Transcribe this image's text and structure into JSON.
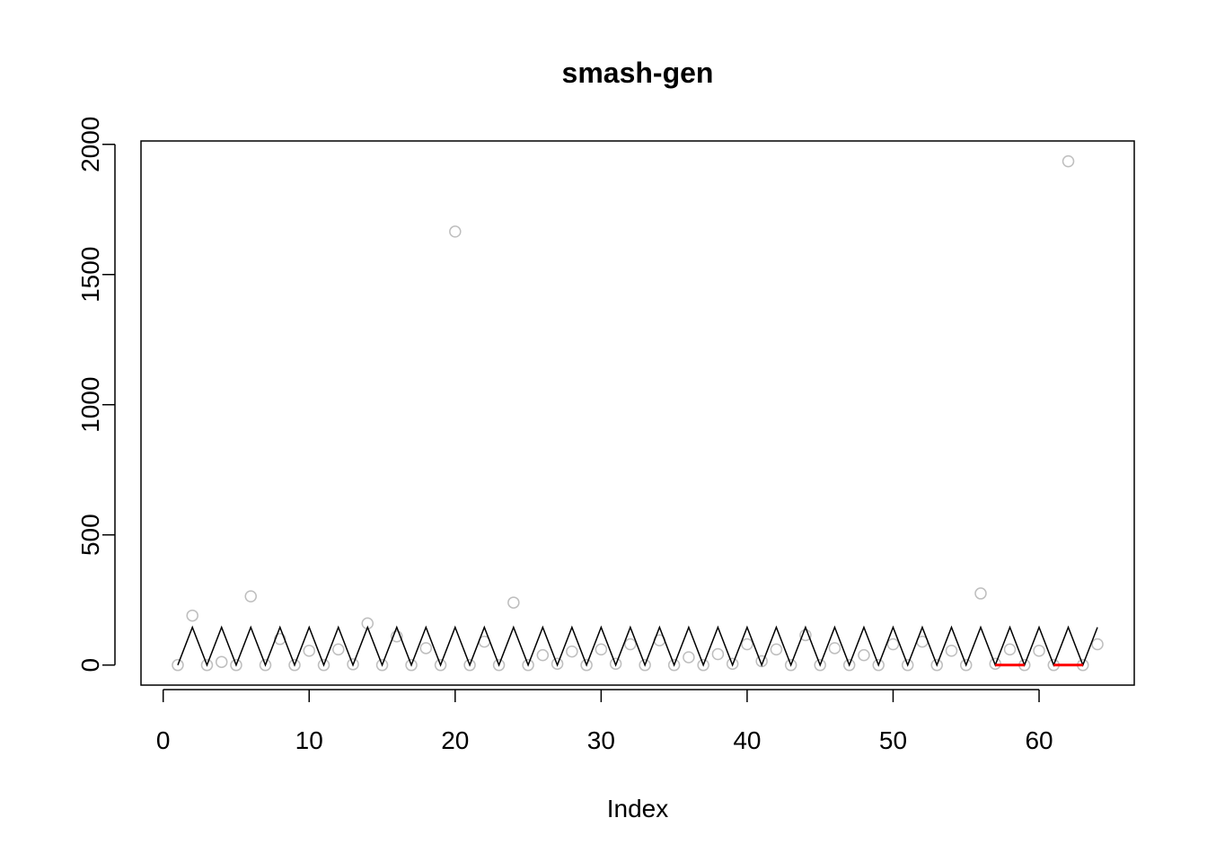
{
  "chart_data": {
    "type": "line",
    "title": "smash-gen",
    "xlabel": "Index",
    "x": [
      1,
      2,
      3,
      4,
      5,
      6,
      7,
      8,
      9,
      10,
      11,
      12,
      13,
      14,
      15,
      16,
      17,
      18,
      19,
      20,
      21,
      22,
      23,
      24,
      25,
      26,
      27,
      28,
      29,
      30,
      31,
      32,
      33,
      34,
      35,
      36,
      37,
      38,
      39,
      40,
      41,
      42,
      43,
      44,
      45,
      46,
      47,
      48,
      49,
      50,
      51,
      52,
      53,
      54,
      55,
      56,
      57,
      58,
      59,
      60,
      61,
      62,
      63,
      64
    ],
    "series": [
      {
        "style": "points",
        "color": "#bebebe",
        "values": [
          0,
          190,
          0,
          12,
          0,
          264,
          0,
          100,
          0,
          55,
          0,
          60,
          3,
          160,
          0,
          110,
          0,
          65,
          0,
          1665,
          0,
          90,
          0,
          240,
          0,
          38,
          5,
          52,
          0,
          60,
          5,
          80,
          0,
          95,
          0,
          30,
          0,
          42,
          5,
          80,
          15,
          60,
          0,
          115,
          0,
          65,
          0,
          38,
          0,
          80,
          0,
          90,
          0,
          55,
          0,
          275,
          5,
          60,
          0,
          55,
          0,
          1935,
          0,
          80
        ]
      },
      {
        "style": "line",
        "color": "#000000",
        "values": [
          0,
          145,
          0,
          145,
          0,
          145,
          0,
          145,
          0,
          145,
          0,
          145,
          0,
          145,
          0,
          145,
          0,
          145,
          0,
          145,
          0,
          145,
          0,
          145,
          0,
          145,
          0,
          145,
          0,
          145,
          0,
          145,
          0,
          145,
          0,
          145,
          0,
          145,
          0,
          145,
          0,
          145,
          0,
          145,
          0,
          145,
          0,
          145,
          0,
          145,
          0,
          145,
          0,
          145,
          0,
          145,
          0,
          145,
          0,
          145,
          0,
          145,
          0,
          145
        ]
      },
      {
        "style": "line",
        "color": "#ff0000",
        "width": 3,
        "values": [
          null,
          null,
          null,
          null,
          null,
          null,
          null,
          null,
          null,
          null,
          null,
          null,
          null,
          null,
          null,
          null,
          null,
          null,
          null,
          null,
          null,
          null,
          null,
          null,
          null,
          null,
          null,
          null,
          null,
          null,
          null,
          null,
          null,
          null,
          null,
          null,
          null,
          null,
          null,
          null,
          null,
          null,
          null,
          null,
          null,
          null,
          null,
          null,
          null,
          null,
          null,
          null,
          null,
          null,
          null,
          null,
          0,
          0,
          0,
          null,
          0,
          0,
          0,
          null
        ]
      }
    ],
    "xlim": [
      -1.52,
      66.52
    ],
    "ylim": [
      -77,
      2013
    ],
    "xticks": [
      0,
      10,
      20,
      30,
      40,
      50,
      60
    ],
    "yticks": [
      0,
      500,
      1000,
      1500,
      2000
    ]
  }
}
